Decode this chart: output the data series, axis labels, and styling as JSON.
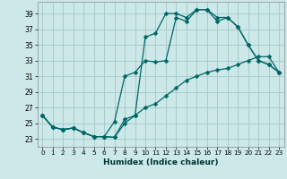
{
  "xlabel": "Humidex (Indice chaleur)",
  "bg_color": "#cce8e8",
  "grid_color": "#aacccc",
  "line_color": "#006666",
  "xlim": [
    -0.5,
    23.5
  ],
  "ylim": [
    22.0,
    40.5
  ],
  "yticks": [
    23,
    25,
    27,
    29,
    31,
    33,
    35,
    37,
    39
  ],
  "xticks": [
    0,
    1,
    2,
    3,
    4,
    5,
    6,
    7,
    8,
    9,
    10,
    11,
    12,
    13,
    14,
    15,
    16,
    17,
    18,
    19,
    20,
    21,
    22,
    23
  ],
  "series1_x": [
    0,
    1,
    2,
    3,
    4,
    5,
    6,
    7,
    8,
    9,
    10,
    11,
    12,
    13,
    14,
    15,
    16,
    17,
    18,
    19,
    20,
    21,
    22,
    23
  ],
  "series1_y": [
    26.0,
    24.5,
    24.2,
    24.4,
    23.8,
    23.3,
    23.3,
    23.2,
    25.0,
    26.0,
    36.0,
    36.5,
    39.0,
    39.0,
    38.5,
    39.5,
    39.5,
    38.0,
    38.5,
    37.3,
    35.0,
    33.0,
    32.5,
    31.5
  ],
  "series2_x": [
    0,
    1,
    2,
    3,
    4,
    5,
    6,
    7,
    8,
    9,
    10,
    11,
    12,
    13,
    14,
    15,
    16,
    17,
    18,
    19,
    20,
    21,
    22,
    23
  ],
  "series2_y": [
    26.0,
    24.5,
    24.2,
    24.4,
    23.8,
    23.3,
    23.3,
    25.2,
    31.0,
    31.5,
    33.0,
    32.8,
    33.0,
    38.5,
    38.0,
    39.5,
    39.5,
    38.5,
    38.5,
    37.3,
    35.0,
    33.0,
    32.5,
    31.5
  ],
  "series3_x": [
    0,
    1,
    2,
    3,
    4,
    5,
    6,
    7,
    8,
    9,
    10,
    11,
    12,
    13,
    14,
    15,
    16,
    17,
    18,
    19,
    20,
    21,
    22,
    23
  ],
  "series3_y": [
    26.0,
    24.5,
    24.2,
    24.4,
    23.8,
    23.3,
    23.3,
    23.2,
    25.5,
    26.0,
    27.0,
    27.5,
    28.5,
    29.5,
    30.5,
    31.0,
    31.5,
    31.8,
    32.0,
    32.5,
    33.0,
    33.5,
    33.5,
    31.5
  ]
}
